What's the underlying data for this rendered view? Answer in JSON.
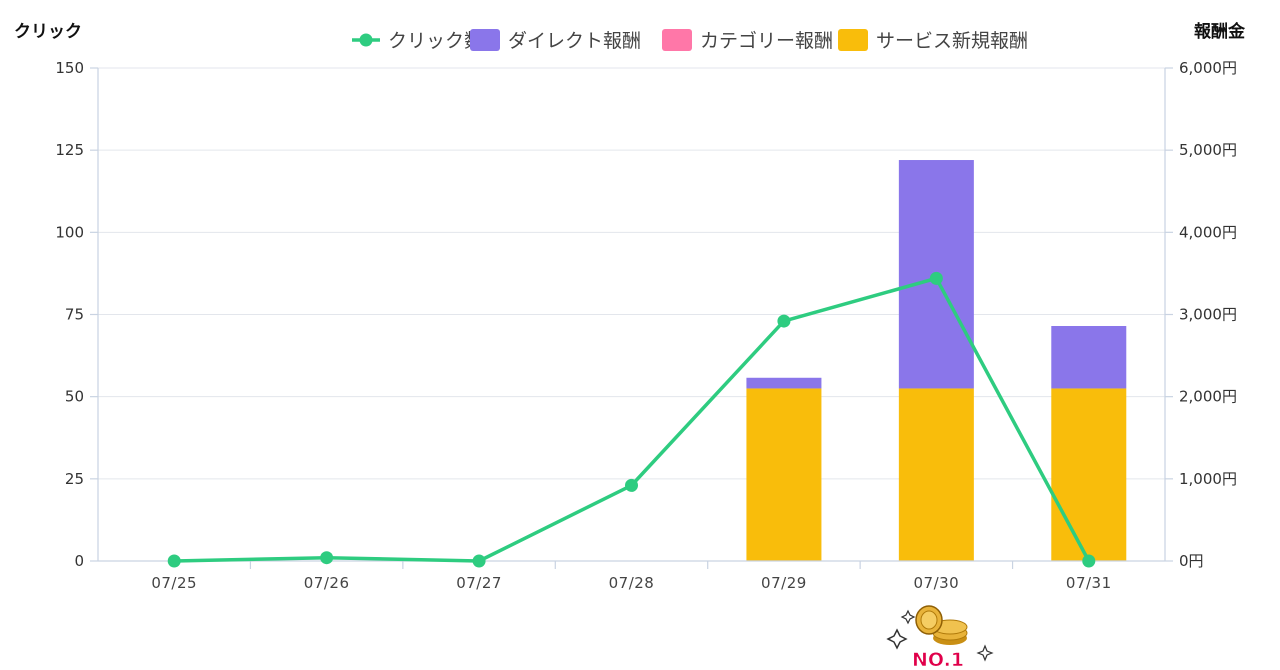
{
  "chart_data": {
    "type": "bar",
    "categories": [
      "07/25",
      "07/26",
      "07/27",
      "07/28",
      "07/29",
      "07/30",
      "07/31"
    ],
    "left_axis": {
      "title": "クリック",
      "ylim": [
        0,
        150
      ],
      "ticks": [
        0,
        25,
        50,
        75,
        100,
        125,
        150
      ],
      "tick_labels": [
        "0",
        "25",
        "50",
        "75",
        "100",
        "125",
        "150"
      ]
    },
    "right_axis": {
      "title": "報酬金",
      "ylim": [
        0,
        6000
      ],
      "ticks": [
        0,
        1000,
        2000,
        3000,
        4000,
        5000,
        6000
      ],
      "tick_labels": [
        "0円",
        "1,000円",
        "2,000円",
        "3,000円",
        "4,000円",
        "5,000円",
        "6,000円"
      ]
    },
    "series": [
      {
        "name": "クリック数",
        "type": "line",
        "axis": "left",
        "color": "#2ecc80",
        "values": [
          0,
          1,
          0,
          23,
          73,
          86,
          0
        ]
      },
      {
        "name": "ダイレクト報酬",
        "type": "bar",
        "axis": "right",
        "color": "#8a76ea",
        "values": [
          0,
          0,
          0,
          0,
          130,
          2780,
          760
        ]
      },
      {
        "name": "カテゴリー報酬",
        "type": "bar",
        "axis": "right",
        "color": "#ff77a8",
        "values": [
          0,
          0,
          0,
          0,
          0,
          0,
          0
        ]
      },
      {
        "name": "サービス新規報酬",
        "type": "bar",
        "axis": "right",
        "color": "#f9bd0b",
        "values": [
          0,
          0,
          0,
          0,
          2100,
          2100,
          2100
        ]
      }
    ],
    "stack_order": [
      "サービス新規報酬",
      "カテゴリー報酬",
      "ダイレクト報酬"
    ],
    "legend_position": "top-right",
    "grid": true
  },
  "badge": {
    "text": "NO.1",
    "category": "07/30",
    "icon": "gold-coins-icon",
    "colors": {
      "text": "#e0004a",
      "coin": "#e8b33a",
      "sparkle": "#333333"
    }
  }
}
